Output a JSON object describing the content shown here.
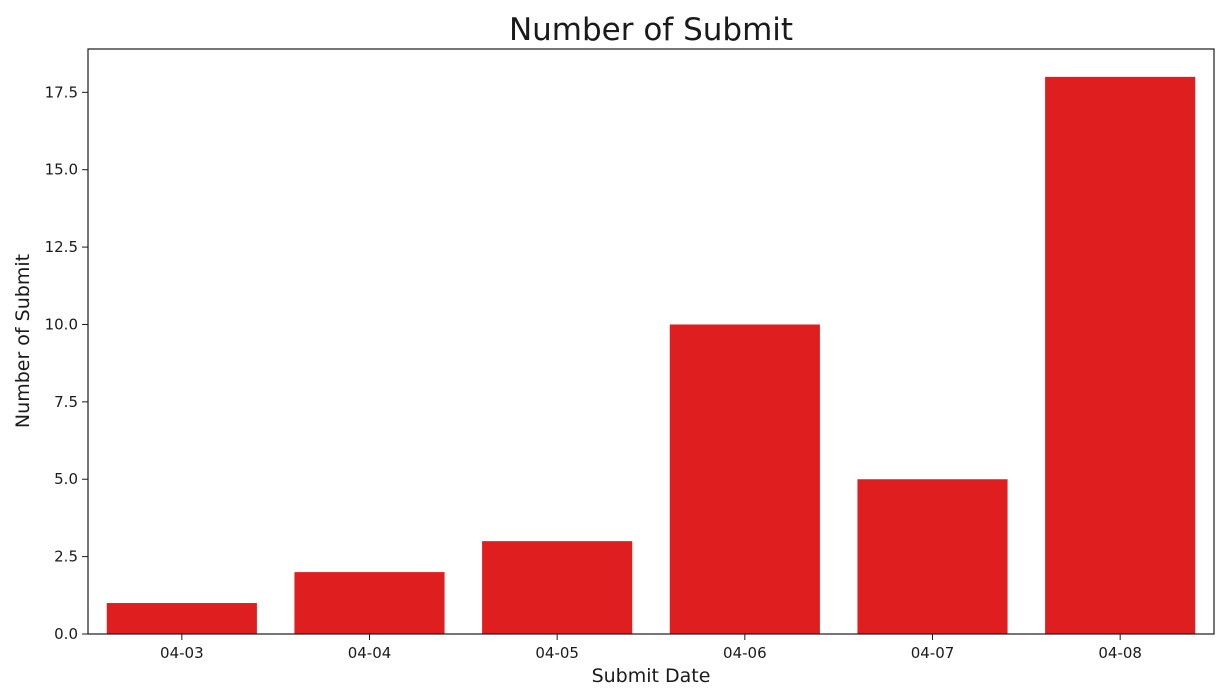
{
  "chart_data": {
    "type": "bar",
    "title": "Number of Submit",
    "xlabel": "Submit Date",
    "ylabel": "Number of Submit",
    "categories": [
      "04-03",
      "04-04",
      "04-05",
      "04-06",
      "04-07",
      "04-08"
    ],
    "values": [
      1,
      2,
      3,
      10,
      5,
      18
    ],
    "ylim": [
      0,
      18.9
    ],
    "yticks": [
      0.0,
      2.5,
      5.0,
      7.5,
      10.0,
      12.5,
      15.0,
      17.5
    ],
    "ytick_labels": [
      "0.0",
      "2.5",
      "5.0",
      "7.5",
      "10.0",
      "12.5",
      "15.0",
      "17.5"
    ],
    "grid": false,
    "bar_color": "#df1f1f"
  }
}
